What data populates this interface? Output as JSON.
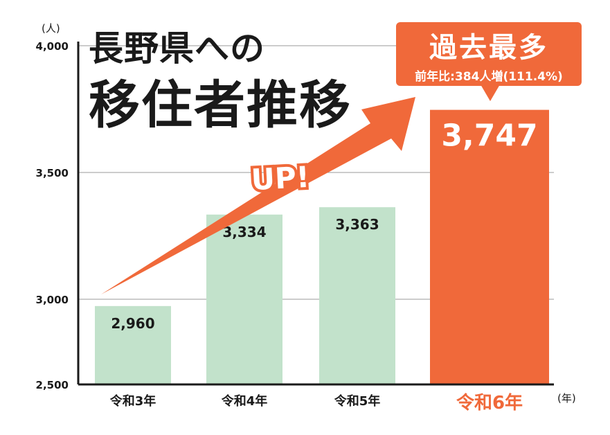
{
  "title_line1": "長野県への",
  "title_line2": "移住者推移",
  "callout": {
    "headline": "過去最多",
    "detail": "前年比:384人増(111.4%)"
  },
  "arrow_label": "UP!",
  "colors": {
    "normal_bar": "#c2e2cb",
    "highlight_bar": "#f0693a",
    "axis": "#1a1a1a",
    "grid": "#999999"
  },
  "chart_data": {
    "type": "bar",
    "title": "長野県への移住者推移",
    "ylabel": "(人)",
    "xlabel": "(年)",
    "categories": [
      "令和3年",
      "令和4年",
      "令和5年",
      "令和6年"
    ],
    "values": [
      2960,
      3334,
      3363,
      3747
    ],
    "value_labels": [
      "2,960",
      "3,334",
      "3,363",
      "3,747"
    ],
    "highlight_index": 3,
    "ylim": [
      2500,
      4000
    ],
    "y_axis_break": true,
    "yticks": [
      2500,
      3000,
      3500,
      4000
    ],
    "ytick_labels": [
      "2,500",
      "3,000",
      "3,500",
      "4,000"
    ],
    "grid": true
  }
}
